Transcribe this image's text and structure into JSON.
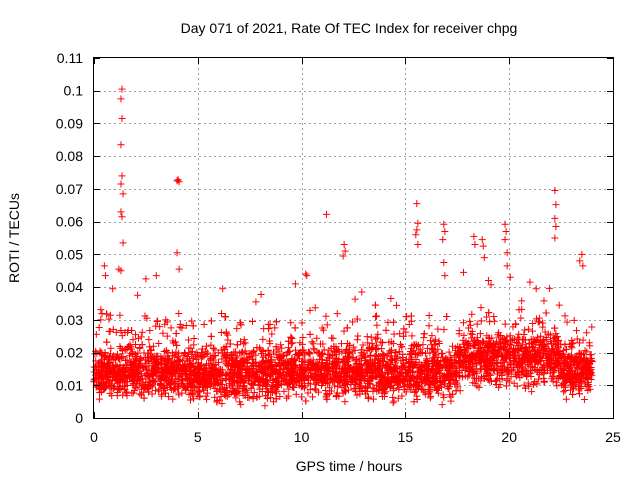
{
  "chart_data": {
    "type": "scatter",
    "title": "Day 071 of 2021, Rate Of TEC Index for receiver chpg",
    "xlabel": "GPS time / hours",
    "ylabel": "ROTI / TECUs",
    "xlim": [
      0,
      25
    ],
    "ylim": [
      0,
      0.11
    ],
    "xticks": [
      0,
      5,
      10,
      15,
      20,
      25
    ],
    "xtick_labels": [
      "0",
      "5",
      "10",
      "15",
      "20",
      "25"
    ],
    "yticks": [
      0,
      0.01,
      0.02,
      0.03,
      0.04,
      0.05,
      0.06,
      0.07,
      0.08,
      0.09,
      0.1,
      0.11
    ],
    "ytick_labels": [
      "0",
      "0.01",
      "0.02",
      "0.03",
      "0.04",
      "0.05",
      "0.06",
      "0.07",
      "0.08",
      "0.09",
      "0.1",
      "0.11"
    ],
    "grid": true,
    "marker": "+",
    "color": "#ff0000",
    "series": [
      {
        "name": "ROTI",
        "points": [
          [
            1.35,
            0.1005
          ],
          [
            1.3,
            0.0975
          ],
          [
            1.35,
            0.0915
          ],
          [
            1.3,
            0.0835
          ],
          [
            1.35,
            0.074
          ],
          [
            1.3,
            0.0715
          ],
          [
            1.4,
            0.0685
          ],
          [
            1.3,
            0.063
          ],
          [
            1.35,
            0.0615
          ],
          [
            1.4,
            0.0535
          ],
          [
            1.2,
            0.0455
          ],
          [
            1.3,
            0.045
          ],
          [
            0.5,
            0.0465
          ],
          [
            0.55,
            0.0435
          ],
          [
            0.9,
            0.0395
          ],
          [
            4.0,
            0.0725
          ],
          [
            4.1,
            0.0722
          ],
          [
            4.05,
            0.0728
          ],
          [
            4.0,
            0.0505
          ],
          [
            4.1,
            0.0455
          ],
          [
            11.2,
            0.0622
          ],
          [
            12.05,
            0.053
          ],
          [
            12.1,
            0.051
          ],
          [
            12.0,
            0.0495
          ],
          [
            10.2,
            0.044
          ],
          [
            10.25,
            0.0435
          ],
          [
            9.7,
            0.041
          ],
          [
            15.55,
            0.0655
          ],
          [
            15.6,
            0.0595
          ],
          [
            15.55,
            0.0575
          ],
          [
            15.5,
            0.056
          ],
          [
            15.6,
            0.053
          ],
          [
            16.85,
            0.0592
          ],
          [
            16.9,
            0.057
          ],
          [
            16.8,
            0.0545
          ],
          [
            16.85,
            0.0475
          ],
          [
            16.9,
            0.0435
          ],
          [
            18.3,
            0.0555
          ],
          [
            18.35,
            0.053
          ],
          [
            18.7,
            0.0545
          ],
          [
            18.75,
            0.0525
          ],
          [
            18.8,
            0.049
          ],
          [
            19.0,
            0.042
          ],
          [
            19.8,
            0.0592
          ],
          [
            19.85,
            0.057
          ],
          [
            19.8,
            0.0545
          ],
          [
            19.9,
            0.0505
          ],
          [
            19.9,
            0.0465
          ],
          [
            20.05,
            0.043
          ],
          [
            22.2,
            0.0695
          ],
          [
            22.25,
            0.0652
          ],
          [
            22.2,
            0.061
          ],
          [
            22.25,
            0.0585
          ],
          [
            22.2,
            0.055
          ],
          [
            23.5,
            0.05
          ],
          [
            23.4,
            0.048
          ],
          [
            23.55,
            0.0465
          ],
          [
            3.0,
            0.0435
          ],
          [
            2.5,
            0.0425
          ],
          [
            6.2,
            0.0395
          ],
          [
            17.8,
            0.0445
          ],
          [
            21.3,
            0.0395
          ],
          [
            2.1,
            0.0375
          ],
          [
            7.8,
            0.0355
          ],
          [
            12.9,
            0.0385
          ],
          [
            14.3,
            0.0365
          ],
          [
            21.0,
            0.0415
          ]
        ]
      }
    ]
  }
}
